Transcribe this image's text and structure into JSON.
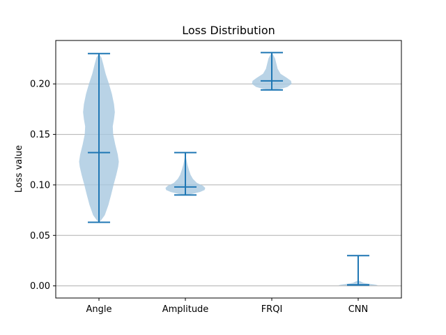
{
  "chart_data": {
    "type": "violin",
    "title": "Loss Distribution",
    "xlabel": "",
    "ylabel": "Loss value",
    "ylim": [
      -0.012,
      0.243
    ],
    "yticks": [
      0.0,
      0.05,
      0.1,
      0.15,
      0.2
    ],
    "ytick_labels": [
      "0.00",
      "0.05",
      "0.10",
      "0.15",
      "0.20"
    ],
    "grid": "y",
    "categories": [
      "Angle",
      "Amplitude",
      "FRQI",
      "CNN"
    ],
    "violins": [
      {
        "label": "Angle",
        "min": 0.063,
        "median": 0.132,
        "max": 0.23,
        "profile": [
          [
            0.063,
            0.0
          ],
          [
            0.065,
            0.1
          ],
          [
            0.07,
            0.28
          ],
          [
            0.08,
            0.45
          ],
          [
            0.09,
            0.58
          ],
          [
            0.1,
            0.7
          ],
          [
            0.11,
            0.83
          ],
          [
            0.118,
            0.92
          ],
          [
            0.123,
            0.95
          ],
          [
            0.13,
            0.9
          ],
          [
            0.14,
            0.78
          ],
          [
            0.15,
            0.68
          ],
          [
            0.158,
            0.66
          ],
          [
            0.165,
            0.72
          ],
          [
            0.172,
            0.76
          ],
          [
            0.18,
            0.72
          ],
          [
            0.19,
            0.62
          ],
          [
            0.2,
            0.48
          ],
          [
            0.21,
            0.32
          ],
          [
            0.22,
            0.2
          ],
          [
            0.226,
            0.12
          ],
          [
            0.23,
            0.0
          ]
        ]
      },
      {
        "label": "Amplitude",
        "min": 0.09,
        "median": 0.098,
        "max": 0.132,
        "profile": [
          [
            0.09,
            0.0
          ],
          [
            0.091,
            0.3
          ],
          [
            0.093,
            0.7
          ],
          [
            0.095,
            0.92
          ],
          [
            0.097,
            0.95
          ],
          [
            0.099,
            0.85
          ],
          [
            0.102,
            0.55
          ],
          [
            0.106,
            0.36
          ],
          [
            0.11,
            0.25
          ],
          [
            0.115,
            0.17
          ],
          [
            0.12,
            0.1
          ],
          [
            0.126,
            0.04
          ],
          [
            0.132,
            0.0
          ]
        ]
      },
      {
        "label": "FRQI",
        "min": 0.194,
        "median": 0.203,
        "max": 0.231,
        "profile": [
          [
            0.194,
            0.0
          ],
          [
            0.195,
            0.4
          ],
          [
            0.197,
            0.75
          ],
          [
            0.2,
            0.95
          ],
          [
            0.203,
            0.92
          ],
          [
            0.206,
            0.72
          ],
          [
            0.21,
            0.42
          ],
          [
            0.215,
            0.28
          ],
          [
            0.22,
            0.22
          ],
          [
            0.225,
            0.16
          ],
          [
            0.228,
            0.09
          ],
          [
            0.231,
            0.0
          ]
        ]
      },
      {
        "label": "CNN",
        "min": 0.001,
        "median": 0.001,
        "max": 0.03,
        "profile": [
          [
            0.0,
            0.0
          ],
          [
            0.0005,
            0.85
          ],
          [
            0.001,
            0.95
          ],
          [
            0.002,
            0.55
          ],
          [
            0.003,
            0.25
          ],
          [
            0.004,
            0.15
          ],
          [
            0.005,
            0.05
          ],
          [
            0.006,
            0.0
          ]
        ]
      }
    ],
    "colors": {
      "body_fill": "#a8c8e0",
      "stats_line": "#1f77b4",
      "grid": "#b0b0b0"
    }
  }
}
